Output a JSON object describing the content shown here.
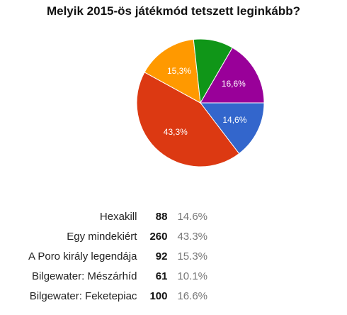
{
  "chart_data": {
    "type": "pie",
    "title": "Melyik 2015-ös játékmód tetszett leginkább?",
    "slices": [
      {
        "label": "Hexakill",
        "count": "88",
        "percent": "14.6%",
        "slice_label": "14,6%",
        "value": 14.6,
        "color": "#3366cc",
        "label_color": "#ffffff"
      },
      {
        "label": "Egy mindekiért",
        "count": "260",
        "percent": "43.3%",
        "slice_label": "43,3%",
        "value": 43.3,
        "color": "#dc3912",
        "label_color": "#ffffff"
      },
      {
        "label": "A Poro király legendája",
        "count": "92",
        "percent": "15.3%",
        "slice_label": "15,3%",
        "value": 15.3,
        "color": "#ff9900",
        "label_color": "#ffffff"
      },
      {
        "label": "Bilgewater: Mészárhíd",
        "count": "61",
        "percent": "10.1%",
        "slice_label": "",
        "value": 10.1,
        "color": "#109618",
        "label_color": "#ffffff"
      },
      {
        "label": "Bilgewater: Feketepiac",
        "count": "100",
        "percent": "16.6%",
        "slice_label": "16,6%",
        "value": 16.6,
        "color": "#990099",
        "label_color": "#ffffff"
      }
    ],
    "start": "3 o'clock",
    "direction": "clockwise"
  }
}
